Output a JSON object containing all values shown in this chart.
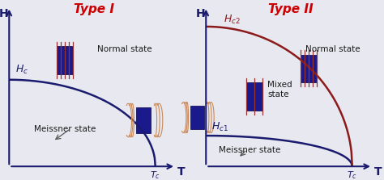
{
  "bg_color": "#e8e8f0",
  "title_I": "Type I",
  "title_II": "Type II",
  "title_color": "#cc0000",
  "axis_color": "#1a1a6e",
  "curve_color_I": "#1a1a6e",
  "curve_color_hc2": "#8b1a1a",
  "curve_color_hc1": "#1a1a6e",
  "label_H": "H",
  "label_T": "T",
  "label_normal": "Normal state",
  "label_meissner": "Meissner state",
  "label_mixed": "Mixed\nstate",
  "text_color": "#1a1a1a",
  "arrow_color": "#555555",
  "box_blue": "#1a1a8c",
  "box_red_lines": "#8b3a3a",
  "box_fill": "#1a1a8c"
}
